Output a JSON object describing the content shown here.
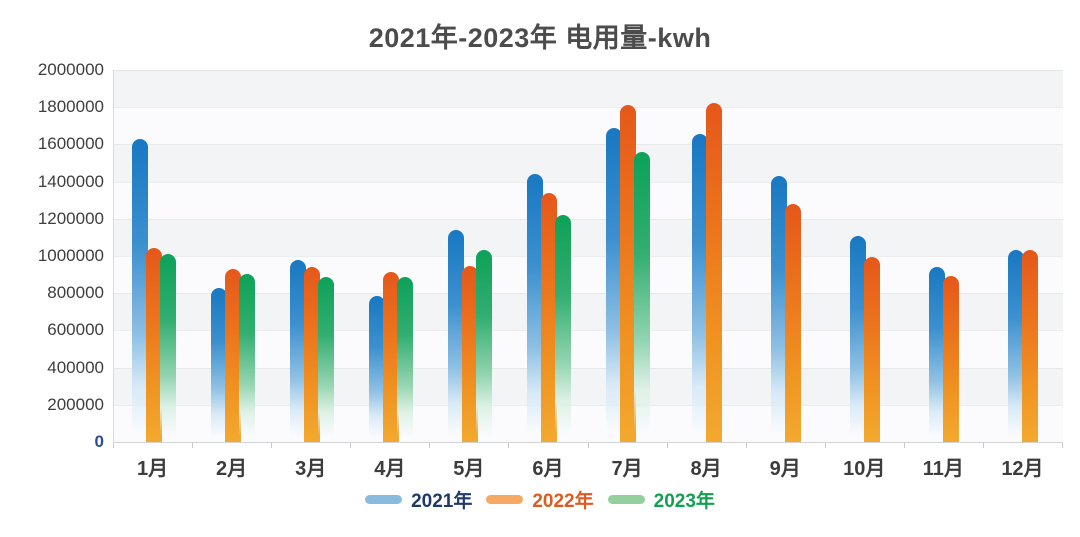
{
  "title": "2021年-2023年 电用量-kwh",
  "axes": {
    "y_tick_labels": [
      "2000000",
      "1800000",
      "1600000",
      "1400000",
      "1200000",
      "1000000",
      "800000",
      "600000",
      "400000",
      "200000",
      "0"
    ],
    "y_zero_label_color": "#2c4d9c",
    "y_label_color": "#3e3e3e",
    "x_label_color": "#3c3c3c"
  },
  "panel": {
    "band_color_a": "#f3f4f6",
    "band_color_b": "#fbfbfd",
    "axis_line_color": "#d2d3d7"
  },
  "chart_data": {
    "type": "bar",
    "title": "2021年-2023年 电用量-kwh",
    "categories": [
      "1月",
      "2月",
      "3月",
      "4月",
      "5月",
      "6月",
      "7月",
      "8月",
      "9月",
      "10月",
      "11月",
      "12月"
    ],
    "series": [
      {
        "name": "2021年",
        "values": [
          1630000,
          830000,
          980000,
          785000,
          1140000,
          1440000,
          1690000,
          1655000,
          1430000,
          1110000,
          940000,
          1030000
        ],
        "bar_gradient_css": "linear-gradient(180deg,#1878c2 0%,#3c90cf 35%,#8fc0e4 65%,#d9eaf7 82%,rgba(255,255,255,0) 97%)",
        "bar_color": "#1878c2",
        "legend_swatch_color": "#8abbdf",
        "legend_text_color": "#1f3a68"
      },
      {
        "name": "2022年",
        "values": [
          1045000,
          930000,
          940000,
          915000,
          945000,
          1340000,
          1810000,
          1820000,
          1280000,
          995000,
          895000,
          1035000
        ],
        "bar_gradient_css": "linear-gradient(180deg,#e5571b 0%,#eb731d 35%,#f09322 70%,#f2a92e 100%)",
        "bar_color": "#e5571b",
        "legend_swatch_color": "#f6a963",
        "legend_text_color": "#dd5b21"
      },
      {
        "name": "2023年",
        "values": [
          1010000,
          905000,
          885000,
          885000,
          1030000,
          1220000,
          1560000,
          null,
          null,
          null,
          null,
          null
        ],
        "bar_gradient_css": "linear-gradient(180deg,#0da159 0%,#33ae70 35%,#93d4b0 65%,#def1e7 82%,rgba(255,255,255,0) 97%)",
        "bar_color": "#0da159",
        "legend_swatch_color": "#94d09e",
        "legend_text_color": "#12a050"
      }
    ],
    "ylabel": "kwh",
    "ylim": [
      0,
      2000000
    ],
    "y_tick_step": 200000,
    "grid": true,
    "grid_bands": "alternating",
    "legend_position": "bottom"
  }
}
